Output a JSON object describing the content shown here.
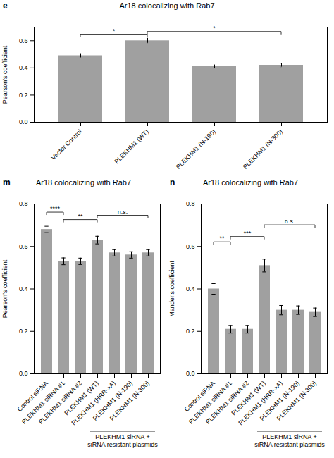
{
  "chart_data": [
    {
      "type": "bar",
      "panel_label": "e",
      "title": "Ar18 colocalizing with Rab7",
      "ylabel": "Pearson's coefficient",
      "categories": [
        "Vector Control",
        "PLEKHM1 (WT)",
        "PLEKHM1 (N-190)",
        "PLEKHM1 (N-300)"
      ],
      "values": [
        0.49,
        0.6,
        0.41,
        0.42
      ],
      "errors": [
        0.015,
        0.018,
        0.012,
        0.013
      ],
      "color": "#a0a0a0",
      "ylim": [
        0.0,
        0.7
      ],
      "yticks": [
        {
          "value": 0.0,
          "label": "0.0"
        },
        0.2,
        0.4,
        0.6
      ],
      "annotations": [
        {
          "bars": [
            0,
            1
          ],
          "label": "*",
          "y": 0.645
        },
        {
          "bars": [
            1,
            3
          ],
          "label": "*",
          "y": 0.665
        }
      ]
    },
    {
      "type": "bar",
      "panel_label": "m",
      "title": "Ar18 colocalizing with Rab7",
      "ylabel": "Pearson's coefficient",
      "categories": [
        "Control siRNA",
        "PLEKHM1 siRNA #1",
        "PLEKHM1 siRNA #2",
        "PLEKHM1 (WT)",
        "PLEKHM1 (HRR->A)",
        "PLEKHM1 (N-190)",
        "PLEKHM1 (N-300)"
      ],
      "values": [
        0.68,
        0.53,
        0.53,
        0.63,
        0.57,
        0.56,
        0.57
      ],
      "errors": [
        0.015,
        0.016,
        0.015,
        0.018,
        0.015,
        0.015,
        0.015
      ],
      "color": "#a0a0a0",
      "ylim": [
        0.0,
        0.8
      ],
      "yticks": [
        {
          "value": 0.0,
          "label": "0.0"
        },
        0.2,
        0.4,
        0.6,
        0.8
      ],
      "group": {
        "label": "PLEKHM1 siRNA +\nsiRNA resistant plasmids",
        "bars": [
          3,
          6
        ]
      },
      "annotations": [
        {
          "bars": [
            0,
            1
          ],
          "label": "****",
          "y": 0.76
        },
        {
          "bars": [
            1,
            3
          ],
          "label": "**",
          "y": 0.725
        },
        {
          "bars": [
            3,
            6
          ],
          "label": "n.s.",
          "y": 0.745
        }
      ]
    },
    {
      "type": "bar",
      "panel_label": "n",
      "title": "Ar18 colocalizing with Rab7",
      "ylabel": "Mander's coefficient",
      "categories": [
        "Control siRNA",
        "PLEKHM1 siRNA #1",
        "PLEKHM1 siRNA #2",
        "PLEKHM1 (WT)",
        "PLEKHM1 (HRR->A)",
        "PLEKHM1 (N-190)",
        "PLEKHM1 (N-300)"
      ],
      "values": [
        0.4,
        0.21,
        0.21,
        0.51,
        0.3,
        0.3,
        0.29
      ],
      "errors": [
        0.025,
        0.018,
        0.018,
        0.03,
        0.022,
        0.02,
        0.02
      ],
      "color": "#a0a0a0",
      "ylim": [
        0.0,
        0.8
      ],
      "yticks": [
        {
          "value": 0.0,
          "label": "0.0"
        },
        0.2,
        0.4,
        0.6,
        0.8
      ],
      "group": {
        "label": "PLEKHM1 siRNA +\nsiRNA resistant plasmids",
        "bars": [
          3,
          6
        ]
      },
      "annotations": [
        {
          "bars": [
            0,
            1
          ],
          "label": "**",
          "y": 0.62
        },
        {
          "bars": [
            1,
            3
          ],
          "label": "***",
          "y": 0.645
        },
        {
          "bars": [
            3,
            6
          ],
          "label": "n.s.",
          "y": 0.7
        }
      ]
    }
  ]
}
